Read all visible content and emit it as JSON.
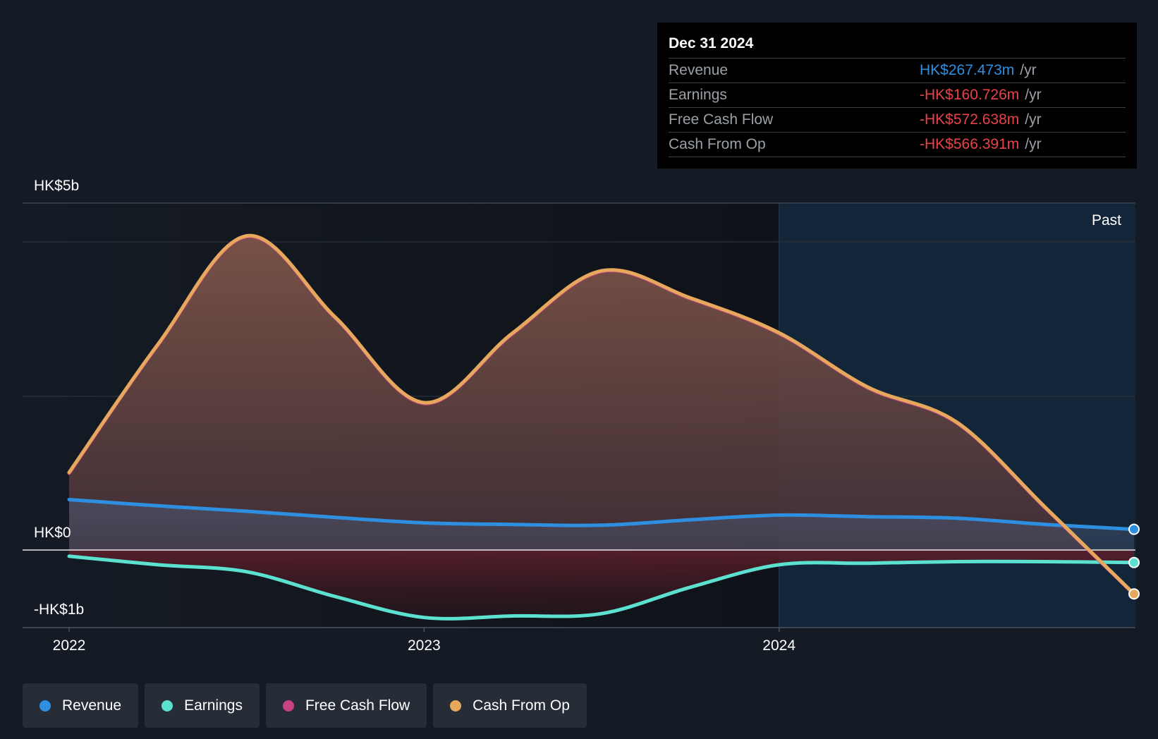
{
  "tooltip": {
    "date": "Dec 31 2024",
    "rows": [
      {
        "label": "Revenue",
        "value": "HK$267.473m",
        "unit": "/yr",
        "color": "#2e8fe0"
      },
      {
        "label": "Earnings",
        "value": "-HK$160.726m",
        "unit": "/yr",
        "color": "#e8424a"
      },
      {
        "label": "Free Cash Flow",
        "value": "-HK$572.638m",
        "unit": "/yr",
        "color": "#e8424a"
      },
      {
        "label": "Cash From Op",
        "value": "-HK$566.391m",
        "unit": "/yr",
        "color": "#e8424a"
      }
    ]
  },
  "past_label": "Past",
  "legend": [
    {
      "label": "Revenue",
      "color": "#2e8fe0"
    },
    {
      "label": "Earnings",
      "color": "#5ce0d0"
    },
    {
      "label": "Free Cash Flow",
      "color": "#c94383"
    },
    {
      "label": "Cash From Op",
      "color": "#e6a85c"
    }
  ],
  "chart_data": {
    "type": "area",
    "y_tick_labels": [
      "HK$5b",
      "HK$0",
      "-HK$1b"
    ],
    "x_tick_labels": [
      "2022",
      "2023",
      "2024"
    ],
    "x_ticks": [
      2022.0,
      2023.0,
      2024.0
    ],
    "xlim": [
      2021.87,
      2025.0
    ],
    "ylim": [
      -1.0,
      4.5
    ],
    "y_unit": "HK$ billions",
    "grid": true,
    "past_region_start": 2024.0,
    "series": [
      {
        "name": "Cash From Op",
        "color": "#e6a85c",
        "x": [
          2022.0,
          2022.25,
          2022.5,
          2022.75,
          2023.0,
          2023.25,
          2023.5,
          2023.75,
          2024.0,
          2024.25,
          2024.5,
          2024.75,
          2025.0
        ],
        "values": [
          1.0,
          2.65,
          4.05,
          3.0,
          1.9,
          2.8,
          3.6,
          3.25,
          2.8,
          2.1,
          1.65,
          0.55,
          -0.566
        ]
      },
      {
        "name": "Free Cash Flow",
        "color": "#c94383",
        "x": [
          2022.0,
          2022.25,
          2022.5,
          2022.75,
          2023.0,
          2023.25,
          2023.5,
          2023.75,
          2024.0,
          2024.25,
          2024.5,
          2024.75,
          2025.0
        ],
        "values": [
          0.99,
          2.64,
          4.04,
          2.99,
          1.89,
          2.79,
          3.59,
          3.24,
          2.79,
          2.09,
          1.64,
          0.54,
          -0.573
        ]
      },
      {
        "name": "Revenue",
        "color": "#2e8fe0",
        "x": [
          2022.0,
          2022.25,
          2022.5,
          2022.75,
          2023.0,
          2023.25,
          2023.5,
          2023.75,
          2024.0,
          2024.25,
          2024.5,
          2024.75,
          2025.0
        ],
        "values": [
          0.65,
          0.57,
          0.5,
          0.42,
          0.35,
          0.33,
          0.32,
          0.39,
          0.45,
          0.43,
          0.41,
          0.33,
          0.267
        ]
      },
      {
        "name": "Earnings",
        "color": "#5ce0d0",
        "x": [
          2022.0,
          2022.25,
          2022.5,
          2022.75,
          2023.0,
          2023.25,
          2023.5,
          2023.75,
          2024.0,
          2024.25,
          2024.5,
          2024.75,
          2025.0
        ],
        "values": [
          -0.08,
          -0.19,
          -0.28,
          -0.6,
          -0.87,
          -0.85,
          -0.82,
          -0.48,
          -0.19,
          -0.17,
          -0.15,
          -0.15,
          -0.161
        ]
      }
    ]
  }
}
